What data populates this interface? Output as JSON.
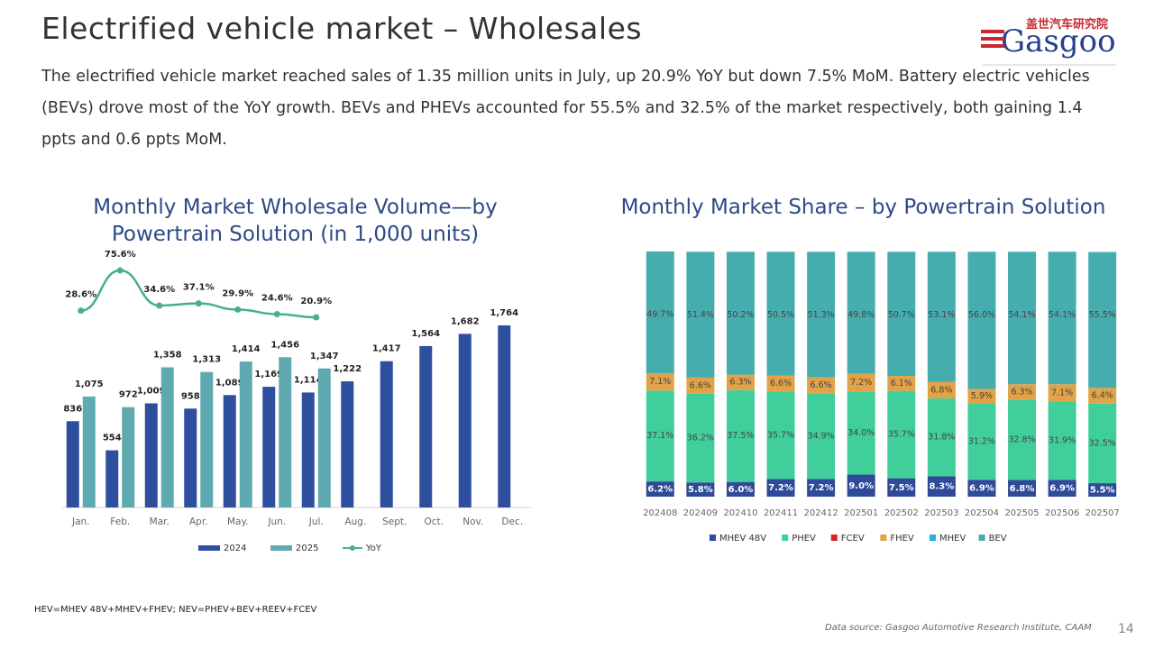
{
  "title": "Electrified vehicle market – Wholesales",
  "summary": "The electrified vehicle market reached sales of 1.35 million units in July, up 20.9% YoY but down 7.5% MoM. Battery electric vehicles (BEVs) drove most of the YoY growth. BEVs and PHEVs accounted for 55.5% and 32.5% of the market respectively, both gaining 1.4 ppts and 0.6 ppts MoM.",
  "logo": {
    "chinese": "盖世汽车研究院",
    "name": "Gasgoo"
  },
  "footnote": "HEV=MHEV 48V+MHEV+FHEV; NEV=PHEV+BEV+REEV+FCEV",
  "source": "Data source: Gasgoo Automotive Research Institute, CAAM",
  "page_number": "14",
  "chart_data": [
    {
      "type": "bar",
      "title": "Monthly Market Wholesale Volume—by Powertrain Solution (in 1,000 units)",
      "categories": [
        "Jan.",
        "Feb.",
        "Mar.",
        "Apr.",
        "May.",
        "Jun.",
        "Jul.",
        "Aug.",
        "Sept.",
        "Oct.",
        "Nov.",
        "Dec."
      ],
      "series": [
        {
          "name": "2024",
          "color": "#2e4f9e",
          "values": [
            836,
            554,
            1009,
            958,
            1089,
            1169,
            1114,
            1222,
            1417,
            1564,
            1682,
            1764
          ],
          "value_labels": [
            "836",
            "554",
            "1,009",
            "958",
            "1,089",
            "1,169",
            "1,114",
            "1,222",
            "1,417",
            "1,564",
            "1,682",
            "1,764"
          ]
        },
        {
          "name": "2025",
          "color": "#5fa9b1",
          "values": [
            1075,
            972,
            1358,
            1313,
            1414,
            1456,
            1347,
            null,
            null,
            null,
            null,
            null
          ],
          "value_labels": [
            "1,075",
            "972",
            "1,358",
            "1,313",
            "1,414",
            "1,456",
            "1,347",
            null,
            null,
            null,
            null,
            null
          ]
        },
        {
          "name": "YoY",
          "type": "line",
          "color": "#47b08b",
          "values": [
            28.6,
            75.6,
            34.6,
            37.1,
            29.9,
            24.6,
            20.9,
            null,
            null,
            null,
            null,
            null
          ],
          "value_labels": [
            "28.6%",
            "75.6%",
            "34.6%",
            "37.1%",
            "29.9%",
            "24.6%",
            "20.9%",
            null,
            null,
            null,
            null,
            null
          ]
        }
      ]
    },
    {
      "type": "stacked_bar",
      "title": "Monthly Market Share – by Powertrain Solution",
      "categories": [
        "202408",
        "202409",
        "202410",
        "202411",
        "202412",
        "202501",
        "202502",
        "202503",
        "202504",
        "202505",
        "202506",
        "202507"
      ],
      "series": [
        {
          "name": "MHEV 48V",
          "color": "#2e4a99",
          "values": [
            6.2,
            5.8,
            6.0,
            7.2,
            7.2,
            9.0,
            7.5,
            8.3,
            6.9,
            6.8,
            6.9,
            5.5
          ],
          "value_labels": [
            "6.2%",
            "5.8%",
            "6.0%",
            "7.2%",
            "7.2%",
            "9.0%",
            "7.5%",
            "8.3%",
            "6.9%",
            "6.8%",
            "6.9%",
            "5.5%"
          ]
        },
        {
          "name": "PHEV",
          "color": "#40cf9b",
          "values": [
            37.1,
            36.2,
            37.5,
            35.7,
            34.9,
            34.0,
            35.7,
            31.8,
            31.2,
            32.8,
            31.9,
            32.5
          ],
          "value_labels": [
            "37.1%",
            "36.2%",
            "37.5%",
            "35.7%",
            "34.9%",
            "34.0%",
            "35.7%",
            "31.8%",
            "31.2%",
            "32.8%",
            "31.9%",
            "32.5%"
          ]
        },
        {
          "name": "FCEV",
          "color": "#e02424",
          "values": [
            0,
            0,
            0,
            0,
            0,
            0,
            0,
            0,
            0,
            0,
            0,
            0
          ]
        },
        {
          "name": "FHEV",
          "color": "#e2a348",
          "values": [
            7.1,
            6.6,
            6.3,
            6.6,
            6.6,
            7.2,
            6.1,
            6.8,
            5.9,
            6.3,
            7.1,
            6.4
          ],
          "value_labels": [
            "7.1%",
            "6.6%",
            "6.3%",
            "6.6%",
            "6.6%",
            "7.2%",
            "6.1%",
            "6.8%",
            "5.9%",
            "6.3%",
            "7.1%",
            "6.4%"
          ]
        },
        {
          "name": "MHEV",
          "color": "#22b2e2",
          "values": [
            0,
            0,
            0,
            0,
            0,
            0,
            0,
            0,
            0,
            0,
            0,
            0
          ]
        },
        {
          "name": "BEV",
          "color": "#46adae",
          "values": [
            49.7,
            51.4,
            50.2,
            50.5,
            51.3,
            49.8,
            50.7,
            53.1,
            56.0,
            54.1,
            54.1,
            55.5
          ],
          "value_labels": [
            "49.7%",
            "51.4%",
            "50.2%",
            "50.5%",
            "51.3%",
            "49.8%",
            "50.7%",
            "53.1%",
            "56.0%",
            "54.1%",
            "54.1%",
            "55.5%"
          ]
        }
      ]
    }
  ]
}
